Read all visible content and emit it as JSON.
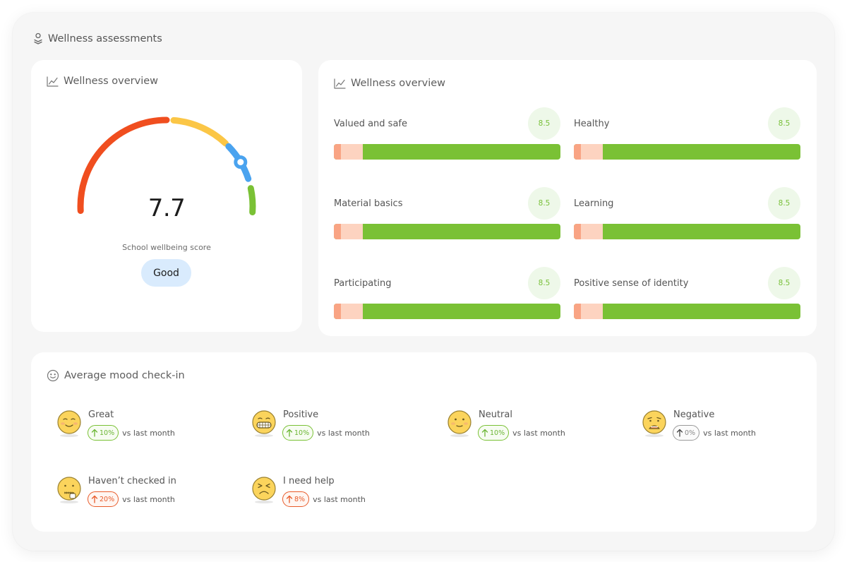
{
  "page": {
    "section_title": "Wellness assessments"
  },
  "gauge_card": {
    "title": "Wellness overview",
    "score": "7.7",
    "score_label": "School wellbeing score",
    "rating": "Good",
    "score_value": 7.7,
    "colors": [
      "#f04e1f",
      "#fbc646",
      "#4aa3ef",
      "#7ac135"
    ]
  },
  "bars_card": {
    "title": "Wellness overview",
    "metrics": [
      {
        "label": "Valued and safe",
        "value": "8.5"
      },
      {
        "label": "Healthy",
        "value": "8.5"
      },
      {
        "label": "Material basics",
        "value": "8.5"
      },
      {
        "label": "Learning",
        "value": "8.5"
      },
      {
        "label": "Participating",
        "value": "8.5"
      },
      {
        "label": "Positive sense of identity",
        "value": "8.5"
      }
    ],
    "colors": {
      "bar": "#7ac135",
      "start_dark": "#f9a484",
      "start_light": "#fdd3c0",
      "badge_bg": "#eef8e9",
      "badge_text": "#79c03a"
    }
  },
  "mood_card": {
    "title": "Average mood check-in",
    "compare_text": "vs last month",
    "moods": [
      {
        "name": "Great",
        "change": "10%",
        "trend": "up",
        "icon": "smiling-face-icon"
      },
      {
        "name": "Positive",
        "change": "10%",
        "trend": "up",
        "icon": "grinning-face-icon"
      },
      {
        "name": "Neutral",
        "change": "10%",
        "trend": "up",
        "icon": "neutral-face-icon"
      },
      {
        "name": "Negative",
        "change": "0%",
        "trend": "flat",
        "icon": "sad-face-icon"
      },
      {
        "name": "Haven’t checked in",
        "change": "20%",
        "trend": "warn",
        "icon": "zipper-mouth-face-icon"
      },
      {
        "name": "I need help",
        "change": "8%",
        "trend": "warn",
        "icon": "distressed-face-icon"
      }
    ]
  }
}
